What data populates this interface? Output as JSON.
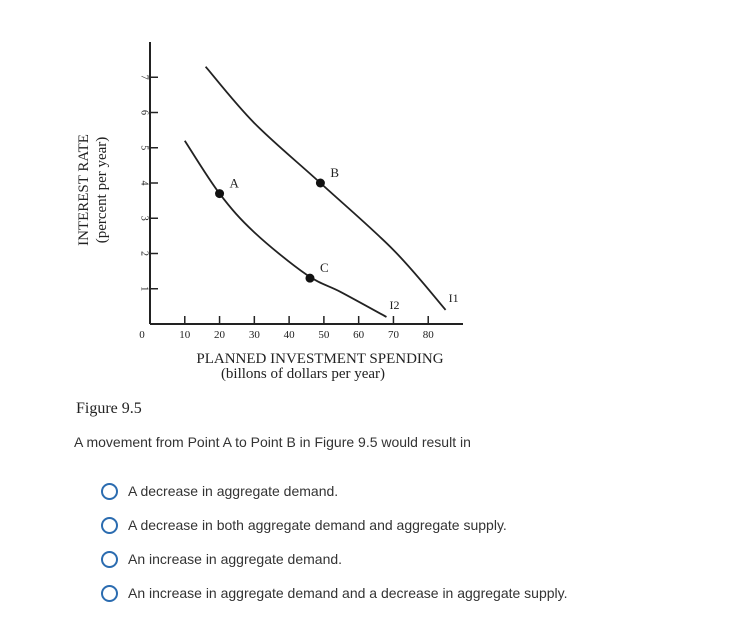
{
  "chart_data": {
    "type": "line",
    "ylabel": "INTEREST RATE",
    "ylabel_sub": "(percent per year)",
    "xlabel": "PLANNED INVESTMENT SPENDING",
    "xlabel_sub": "(billons of dollars per year)",
    "origin_label": "0",
    "x_ticks": [
      10,
      20,
      30,
      40,
      50,
      60,
      70,
      80
    ],
    "y_ticks": [
      1,
      2,
      3,
      4,
      5,
      6,
      7
    ],
    "xlim": [
      0,
      90
    ],
    "ylim": [
      0,
      8
    ],
    "series": [
      {
        "name": "I1",
        "points": [
          [
            16,
            7.3
          ],
          [
            30,
            5.7
          ],
          [
            49,
            4.0
          ],
          [
            70,
            2.1
          ],
          [
            85,
            0.4
          ]
        ]
      },
      {
        "name": "I2",
        "points": [
          [
            10,
            5.2
          ],
          [
            20,
            3.7
          ],
          [
            30,
            2.6
          ],
          [
            45,
            1.4
          ],
          [
            55,
            0.9
          ],
          [
            68,
            0.2
          ]
        ]
      }
    ],
    "points": [
      {
        "label": "A",
        "x": 20,
        "y": 3.7
      },
      {
        "label": "B",
        "x": 49,
        "y": 4.0
      },
      {
        "label": "C",
        "x": 46,
        "y": 1.3
      }
    ]
  },
  "figure_title": "Figure 9.5",
  "question": "A movement from Point A to Point B in Figure 9.5 would result in",
  "options": [
    "A decrease in aggregate demand.",
    "A decrease in both aggregate demand and aggregate supply.",
    "An increase in aggregate demand.",
    "An increase in aggregate demand and a decrease in aggregate supply."
  ]
}
